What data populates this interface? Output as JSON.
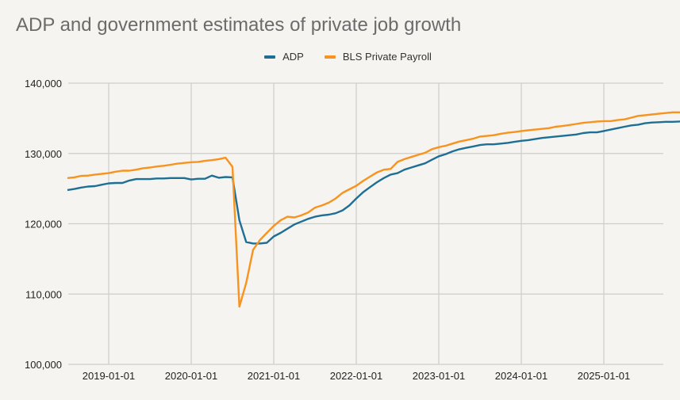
{
  "chart_data": {
    "type": "line",
    "title": "ADP and government estimates of private job growth",
    "xlabel": "",
    "ylabel": "",
    "ylim": [
      100000,
      140000
    ],
    "yticks": [
      100000,
      110000,
      120000,
      130000,
      140000
    ],
    "ytick_labels": [
      "100,000",
      "110,000",
      "120,000",
      "130,000",
      "140,000"
    ],
    "xticks": [
      "2019-01-01",
      "2020-01-01",
      "2021-01-01",
      "2022-01-01",
      "2023-01-01",
      "2024-01-01",
      "2025-01-01"
    ],
    "xlim": [
      "2018-07-01",
      "2025-09-01"
    ],
    "grid": true,
    "legend_position": "top-center",
    "series": [
      {
        "name": "ADP",
        "color": "#1f6f94",
        "start": "2018-07-01",
        "values": [
          124800,
          124950,
          125150,
          125300,
          125350,
          125550,
          125750,
          125800,
          125800,
          126150,
          126350,
          126350,
          126350,
          126450,
          126450,
          126500,
          126500,
          126500,
          126300,
          126400,
          126400,
          126850,
          126550,
          126650,
          126600,
          120500,
          117400,
          117200,
          117200,
          117300,
          118200,
          118700,
          119300,
          119900,
          120300,
          120700,
          121000,
          121200,
          121300,
          121500,
          121900,
          122600,
          123600,
          124500,
          125200,
          125900,
          126500,
          127000,
          127200,
          127700,
          128000,
          128300,
          128600,
          129100,
          129600,
          129900,
          130300,
          130600,
          130800,
          131000,
          131200,
          131300,
          131300,
          131400,
          131500,
          131650,
          131800,
          131900,
          132050,
          132200,
          132300,
          132400,
          132500,
          132600,
          132700,
          132900,
          133000,
          133000,
          133200,
          133400,
          133600,
          133800,
          134000,
          134100,
          134300,
          134400,
          134450,
          134500,
          134500,
          134550,
          134600,
          134600
        ]
      },
      {
        "name": "BLS Private Payroll",
        "color": "#f7931e",
        "start": "2018-07-01",
        "values": [
          126500,
          126600,
          126800,
          126850,
          127000,
          127100,
          127200,
          127400,
          127550,
          127550,
          127700,
          127900,
          128000,
          128150,
          128250,
          128400,
          128550,
          128650,
          128750,
          128800,
          128950,
          129050,
          129200,
          129400,
          128100,
          108200,
          111600,
          116300,
          117700,
          118700,
          119700,
          120500,
          121000,
          120900,
          121200,
          121600,
          122300,
          122600,
          123000,
          123600,
          124400,
          124900,
          125400,
          126100,
          126700,
          127300,
          127700,
          127800,
          128800,
          129200,
          129500,
          129800,
          130100,
          130600,
          130900,
          131100,
          131400,
          131700,
          131900,
          132100,
          132400,
          132500,
          132600,
          132800,
          132950,
          133050,
          133200,
          133300,
          133400,
          133500,
          133600,
          133800,
          133900,
          134050,
          134200,
          134350,
          134450,
          134550,
          134600,
          134600,
          134750,
          134850,
          135100,
          135350,
          135450,
          135550,
          135650,
          135750,
          135850,
          135850,
          135900
        ]
      }
    ]
  }
}
